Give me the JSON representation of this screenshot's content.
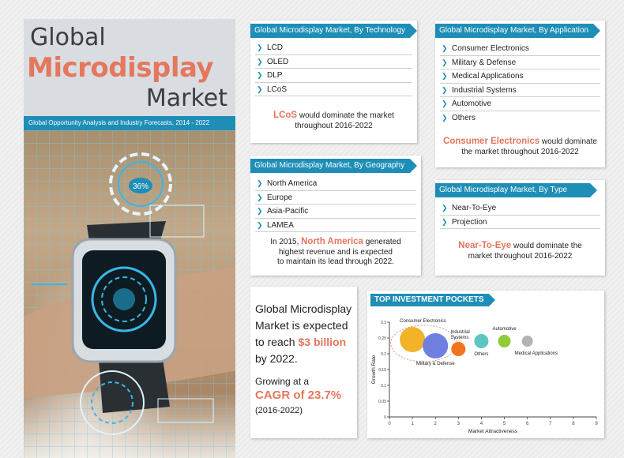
{
  "title": {
    "line1": "Global",
    "line2": "Microdisplay",
    "line3": "Market",
    "subtitle": "Global Opportunity Analysis and Industry Forecasts, 2014 - 2022"
  },
  "technology": {
    "header": "Global Microdisplay Market, By Technology",
    "items": [
      "LCD",
      "OLED",
      "DLP",
      "LCoS"
    ],
    "highlight": "LCoS",
    "summary_rest_1": " would dominate the market",
    "summary_line2": "throughout 2016-2022"
  },
  "application": {
    "header": "Global Microdisplay Market, By Application",
    "items": [
      "Consumer Electronics",
      "Military & Defense",
      "Medical Applications",
      "Industrial Systems",
      "Automotive",
      "Others"
    ],
    "highlight": "Consumer Electronics",
    "summary_rest_1": " would dominate",
    "summary_line2": "the market throughout 2016-2022"
  },
  "geography": {
    "header": "Global Microdisplay Market, By Geography",
    "items": [
      "North America",
      "Europe",
      "Asia-Pacific",
      "LAMEA"
    ],
    "summary_pre": "In 2015, ",
    "highlight": "North America",
    "summary_post": " generated",
    "summary_line2": "highest revenue and is expected",
    "summary_line3": "to maintain its lead through 2022."
  },
  "type": {
    "header": "Global Microdisplay Market, By Type",
    "items": [
      "Near-To-Eye",
      "Projection"
    ],
    "highlight": "Near-To-Eye",
    "summary_rest_1": " would dominate the",
    "summary_line2": "market throughout 2016-2022"
  },
  "stat": {
    "line1": "Global Microdisplay",
    "line2": "Market is expected",
    "line3_pre": "to reach ",
    "line3_hl": "$3 billion",
    "line4": "by 2022.",
    "growth_1": "Growing at a",
    "growth_hl": "CAGR of 23.7%",
    "growth_period": "(2016-2022)"
  },
  "photo": {
    "gauge_label": "36%"
  },
  "colors": {
    "accent_blue": "#1e8eb7",
    "accent_orange": "#e4775d",
    "dark_text": "#3a3e42"
  },
  "chart_data": {
    "type": "scatter",
    "title": "TOP INVESTMENT POCKETS",
    "xlabel": "Market Attractiveness",
    "ylabel": "Growth Rate",
    "xlim": [
      0,
      9
    ],
    "ylim": [
      0,
      0.3
    ],
    "x_ticks": [
      "0",
      "1",
      "2",
      "3",
      "4",
      "5",
      "6",
      "7",
      "8",
      "9"
    ],
    "y_ticks": [
      "0",
      "0.05",
      "0.1",
      "0.15",
      "0.2",
      "0.25",
      "0.3"
    ],
    "bubbles": [
      {
        "name": "Consumer Electronics",
        "x": 1.0,
        "y": 0.245,
        "size": 16,
        "color": "#f2b229"
      },
      {
        "name": "Military & Defense",
        "x": 2.0,
        "y": 0.225,
        "size": 16,
        "color": "#6f7fe0"
      },
      {
        "name": "Industrial Systems",
        "x": 3.0,
        "y": 0.215,
        "size": 9,
        "color": "#f2741f"
      },
      {
        "name": "Others",
        "x": 4.0,
        "y": 0.24,
        "size": 9,
        "color": "#5cc7c2"
      },
      {
        "name": "Automotive",
        "x": 5.0,
        "y": 0.24,
        "size": 8,
        "color": "#8ecc3a"
      },
      {
        "name": "Medical Applications",
        "x": 6.0,
        "y": 0.24,
        "size": 7,
        "color": "#b3b3b3"
      }
    ]
  }
}
